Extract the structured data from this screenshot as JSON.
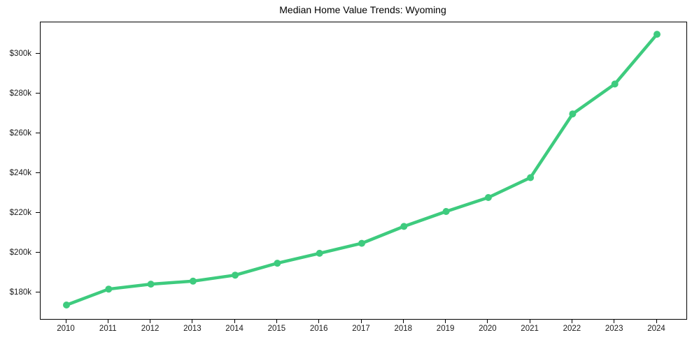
{
  "chart_data": {
    "type": "line",
    "title": "Median Home Value Trends: Wyoming",
    "x": [
      2010,
      2011,
      2012,
      2013,
      2014,
      2015,
      2016,
      2017,
      2018,
      2019,
      2020,
      2021,
      2022,
      2023,
      2024
    ],
    "series": [
      {
        "name": "Median Home Value",
        "values": [
          174000,
          182000,
          184500,
          186000,
          189000,
          195000,
          200000,
          205000,
          213500,
          221000,
          228000,
          238000,
          270000,
          285000,
          310000
        ]
      }
    ],
    "xlabel": "",
    "ylabel": "",
    "ylim": [
      167000,
      316000
    ],
    "y_ticks": [
      {
        "value": 180000,
        "label": "$180k"
      },
      {
        "value": 200000,
        "label": "$200k"
      },
      {
        "value": 220000,
        "label": "$220k"
      },
      {
        "value": 240000,
        "label": "$240k"
      },
      {
        "value": 260000,
        "label": "$260k"
      },
      {
        "value": 280000,
        "label": "$280k"
      },
      {
        "value": 300000,
        "label": "$300k"
      }
    ],
    "grid": false,
    "legend": false,
    "marker": "circle",
    "colors": {
      "line": "#3ecb7e",
      "marker": "#3ecb7e",
      "axis": "#000000",
      "tick_label": "#1a1a1a",
      "title": "#000000",
      "background": "#ffffff"
    }
  }
}
